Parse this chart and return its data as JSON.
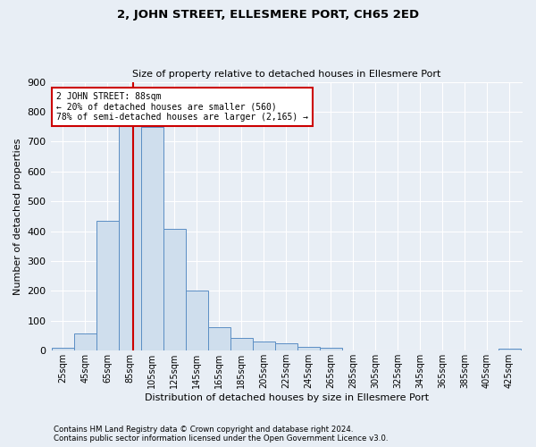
{
  "title": "2, JOHN STREET, ELLESMERE PORT, CH65 2ED",
  "subtitle": "Size of property relative to detached houses in Ellesmere Port",
  "xlabel": "Distribution of detached houses by size in Ellesmere Port",
  "ylabel": "Number of detached properties",
  "footnote1": "Contains HM Land Registry data © Crown copyright and database right 2024.",
  "footnote2": "Contains public sector information licensed under the Open Government Licence v3.0.",
  "bar_labels": [
    "25sqm",
    "45sqm",
    "65sqm",
    "85sqm",
    "105sqm",
    "125sqm",
    "145sqm",
    "165sqm",
    "185sqm",
    "205sqm",
    "225sqm",
    "245sqm",
    "265sqm",
    "285sqm",
    "305sqm",
    "325sqm",
    "345sqm",
    "365sqm",
    "385sqm",
    "405sqm",
    "425sqm"
  ],
  "bar_values": [
    10,
    58,
    435,
    755,
    750,
    408,
    200,
    78,
    43,
    30,
    25,
    13,
    10,
    0,
    0,
    0,
    0,
    0,
    0,
    0,
    5
  ],
  "bar_color": "#cfdeed",
  "bar_edge_color": "#5b8ec4",
  "ylim": [
    0,
    900
  ],
  "yticks": [
    0,
    100,
    200,
    300,
    400,
    500,
    600,
    700,
    800,
    900
  ],
  "vline_color": "#cc0000",
  "vline_x": 88,
  "annotation_line1": "2 JOHN STREET: 88sqm",
  "annotation_line2": "← 20% of detached houses are smaller (560)",
  "annotation_line3": "78% of semi-detached houses are larger (2,165) →",
  "annotation_box_color": "#ffffff",
  "annotation_box_edge": "#cc0000",
  "bg_color": "#e8eef5",
  "fig_width": 6.0,
  "fig_height": 5.0,
  "dpi": 100
}
